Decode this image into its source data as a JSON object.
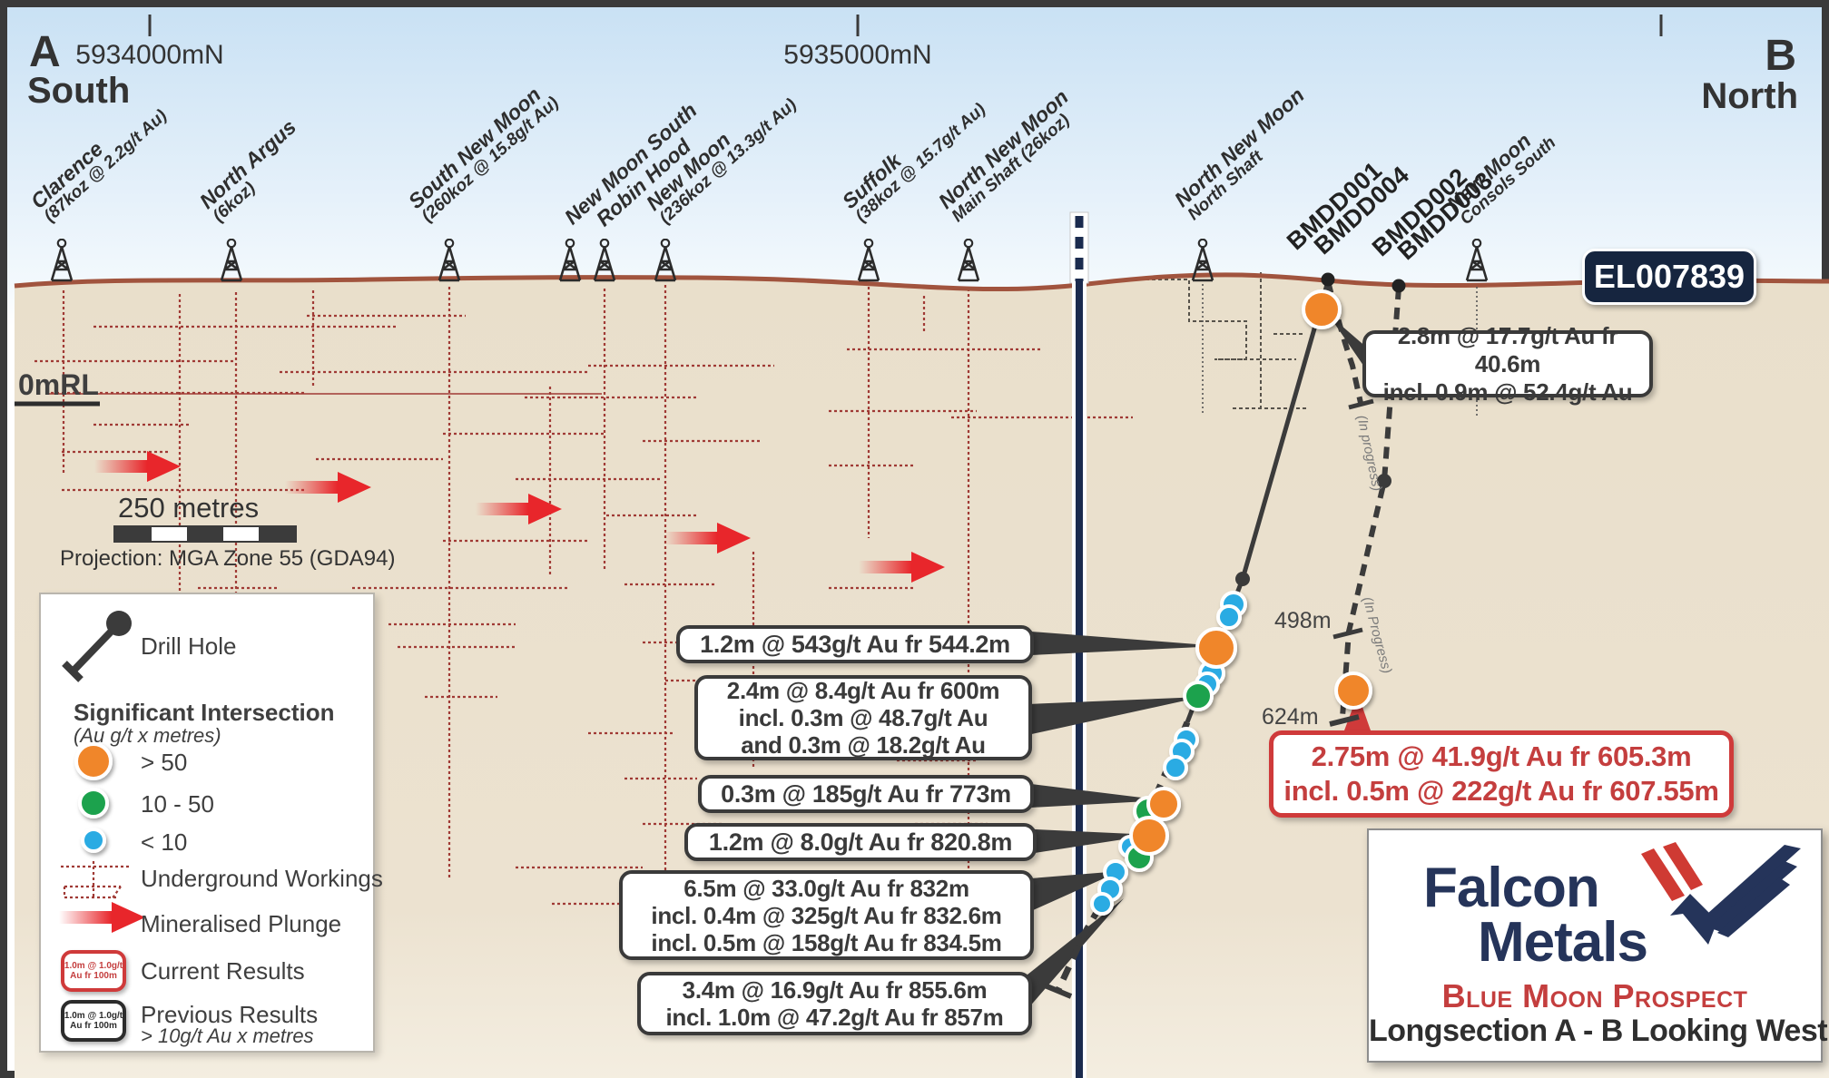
{
  "colors": {
    "high_grade": "#f0862c",
    "mid_grade": "#1ea24d",
    "low_grade": "#29abe3",
    "workings_maroon": "#a03a35",
    "shaft_navy": "#1b2b4e",
    "result_red": "#cf3a3a",
    "result_red_text": "#c43e3e",
    "terrain": "#a1543e",
    "arrow_red": "#e8262b",
    "ground": "#e9dfcb",
    "badge_navy": "#16253f",
    "logo_navy": "#25345a"
  },
  "top_axis": {
    "left_marker": "A",
    "left_direction": "South",
    "right_marker": "B",
    "right_direction": "North",
    "ticks": [
      {
        "label": "5934000mN"
      },
      {
        "label": "5935000mN"
      },
      {
        "label": ""
      }
    ]
  },
  "el_badge": "EL007839",
  "rl_label": "0mRL",
  "scalebar": {
    "label": "250 metres",
    "projection": "Projection: MGA Zone 55 (GDA94)"
  },
  "mines": [
    {
      "name": "Clarence",
      "stats": "(87koz @ 2.2g/t Au)"
    },
    {
      "name": "North Argus",
      "stats": "(6koz)"
    },
    {
      "name": "South New Moon",
      "stats": "(260koz @ 15.8g/t Au)"
    },
    {
      "name": "New Moon South",
      "stats": ""
    },
    {
      "name": "Robin Hood",
      "stats": ""
    },
    {
      "name": "New Moon",
      "stats": "(236koz @ 13.3g/t Au)"
    },
    {
      "name": "Suffolk",
      "stats": "(38koz @ 15.7g/t Au)"
    },
    {
      "name": "North New Moon",
      "stats": "Main Shaft (26koz)"
    },
    {
      "name": "North New Moon",
      "stats": "North Shaft"
    },
    {
      "name": "New Moon",
      "stats": "Consols South"
    }
  ],
  "drillholes": [
    "BMDD001",
    "BMDD004",
    "BMDD002",
    "BMDD003"
  ],
  "in_progress_labels": [
    "(In progress)",
    "(In Progress)"
  ],
  "depth_markers": [
    "498m",
    "624m"
  ],
  "surface_callout": {
    "lines": [
      "2.8m @ 17.7g/t Au fr 40.6m",
      "incl. 0.9m @ 52.4g/t Au"
    ]
  },
  "callouts": [
    {
      "lines": [
        "1.2m @ 543g/t Au fr 544.2m"
      ]
    },
    {
      "lines": [
        "2.4m @ 8.4g/t Au fr 600m",
        "incl. 0.3m @ 48.7g/t Au",
        "and 0.3m @ 18.2g/t Au"
      ]
    },
    {
      "lines": [
        "0.3m @ 185g/t Au fr 773m"
      ]
    },
    {
      "lines": [
        "1.2m @ 8.0g/t Au fr 820.8m"
      ]
    },
    {
      "lines": [
        "6.5m @ 33.0g/t Au fr 832m",
        "incl. 0.4m @ 325g/t Au fr 832.6m",
        "incl. 0.5m @ 158g/t Au fr 834.5m"
      ]
    },
    {
      "lines": [
        "3.4m @ 16.9g/t Au fr 855.6m",
        "incl. 1.0m @ 47.2g/t Au fr 857m"
      ]
    }
  ],
  "highlight_callout": {
    "lines": [
      "2.75m @ 41.9g/t Au fr 605.3m",
      "incl. 0.5m @ 222g/t Au fr 607.55m"
    ]
  },
  "legend": {
    "drill_hole": "Drill Hole",
    "significant_intersection": "Significant Intersection",
    "sig_units": "(Au g/t x metres)",
    "class_high": "> 50",
    "class_mid": "10 - 50",
    "class_low": "< 10",
    "underground_workings": "Underground Workings",
    "mineralised_plunge": "Mineralised Plunge",
    "current_results": "Current Results",
    "previous_results": "Previous Results",
    "previous_sub": "> 10g/t Au x metres",
    "chip_line1": "1.0m @ 1.0g/t",
    "chip_line2": "Au fr 100m"
  },
  "title_block": {
    "company_line1": "Falcon",
    "company_line2": "Metals",
    "subtitle": "Blue Moon Prospect",
    "caption": "Longsection A - B Looking West"
  }
}
